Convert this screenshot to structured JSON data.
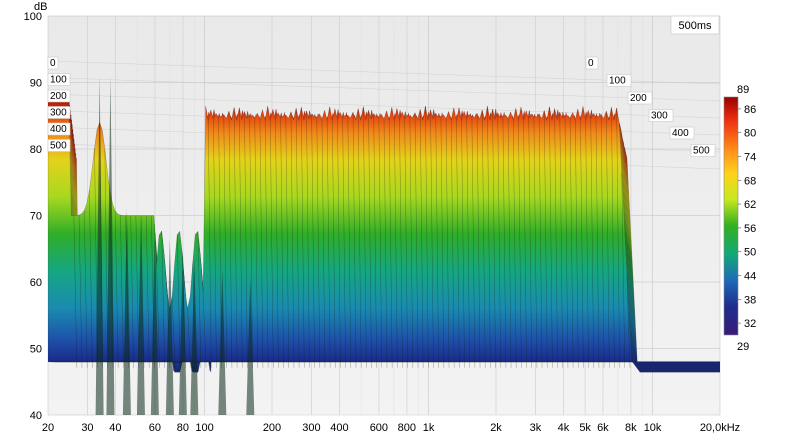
{
  "chart_data": {
    "type": "waterfall",
    "y_unit": "dB",
    "x_unit": "kHz",
    "time_window": "500ms",
    "ylim": [
      40,
      100
    ],
    "yticks": [
      "40",
      "50",
      "60",
      "70",
      "80",
      "90",
      "100"
    ],
    "x_ticks": [
      {
        "f": 20,
        "label": "20"
      },
      {
        "f": 30,
        "label": "30"
      },
      {
        "f": 40,
        "label": "40"
      },
      {
        "f": 60,
        "label": "60"
      },
      {
        "f": 80,
        "label": "80"
      },
      {
        "f": 100,
        "label": "100"
      },
      {
        "f": 200,
        "label": "200"
      },
      {
        "f": 300,
        "label": "300"
      },
      {
        "f": 400,
        "label": "400"
      },
      {
        "f": 600,
        "label": "600"
      },
      {
        "f": 800,
        "label": "800"
      },
      {
        "f": 1000,
        "label": "1k"
      },
      {
        "f": 2000,
        "label": "2k"
      },
      {
        "f": 3000,
        "label": "3k"
      },
      {
        "f": 4000,
        "label": "4k"
      },
      {
        "f": 5000,
        "label": "5k"
      },
      {
        "f": 6000,
        "label": "6k"
      },
      {
        "f": 8000,
        "label": "8k"
      },
      {
        "f": 10000,
        "label": "10k"
      },
      {
        "f": 20000,
        "label": "20,0kHz"
      }
    ],
    "xlim_hz": [
      20,
      20000
    ],
    "time_ticks_ms": [
      "0",
      "100",
      "200",
      "300",
      "400",
      "500"
    ],
    "colorbar": {
      "min": "29",
      "max": "89",
      "ticks": [
        "86",
        "80",
        "74",
        "68",
        "62",
        "56",
        "50",
        "44",
        "38",
        "32"
      ],
      "stops": [
        "#9a0000",
        "#f03010",
        "#ff8c1a",
        "#ffd21a",
        "#c8e820",
        "#33b020",
        "#12a878",
        "#1e6ab8",
        "#1f2d8c",
        "#3a1a78"
      ]
    },
    "series_peak_db": {
      "low_freq_peak": {
        "freq_hz": 34,
        "db": 91
      },
      "mid_plateau_db": 88,
      "high_freq_rolloff_hz": 7000,
      "floor_db": 48
    }
  }
}
